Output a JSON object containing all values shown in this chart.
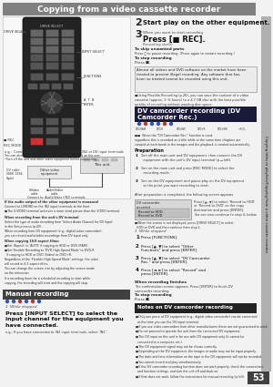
{
  "title": "Copying from a video cassette recorder",
  "page_bg": "#f0f0f0",
  "page_number": "53",
  "sidebar_text": "Copying titles or playlists/Copying from a video cassette recorder",
  "section_dv_title": "DV camcorder recording (DV\nCamcorder Rec.)",
  "section_manual_title": "Manual recording",
  "step2_text": "Start play on the other equipment.",
  "step3_label": "When you want to start recording",
  "step3_text": "Press [■ REC].",
  "step3_sub": "Recording starts.",
  "dv_steps": [
    "Press [FUNCTIONS].",
    "Press [▲, ▼] to select \"Other\nFunctions\" and press [ENTER].",
    "Press [▲, ▼] to select \"DV Camcorder\nRec.\" and press [ENTER].",
    "Press [◄, ►] to select \"Record\" and\npress [ENTER]."
  ]
}
